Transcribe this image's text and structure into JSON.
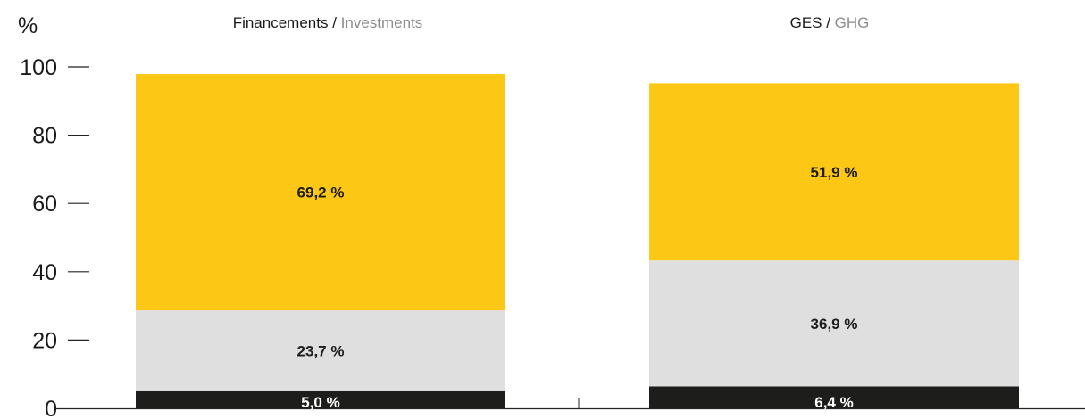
{
  "chart_data": {
    "type": "bar",
    "stacked": true,
    "y_unit": "%",
    "ylim": [
      0,
      100
    ],
    "yticks": [
      0,
      20,
      40,
      60,
      80,
      100
    ],
    "grid": false,
    "categories": [
      {
        "title": "Financements",
        "subtitle": "Investments"
      },
      {
        "title": "GES",
        "subtitle": "GHG"
      }
    ],
    "series": [
      {
        "color": "#1d1d1b",
        "label_color": "#ffffff",
        "values": [
          5.0,
          6.4
        ],
        "labels": [
          "5,0 %",
          "6,4 %"
        ]
      },
      {
        "color": "#dfdfe0",
        "label_color": "#1d1d1b",
        "values": [
          23.7,
          36.9
        ],
        "labels": [
          "23,7 %",
          "36,9 %"
        ]
      },
      {
        "color": "#fcc715",
        "label_color": "#1d1d1b",
        "values": [
          69.2,
          51.9
        ],
        "labels": [
          "69,2 %",
          "51,9 %"
        ]
      }
    ]
  }
}
